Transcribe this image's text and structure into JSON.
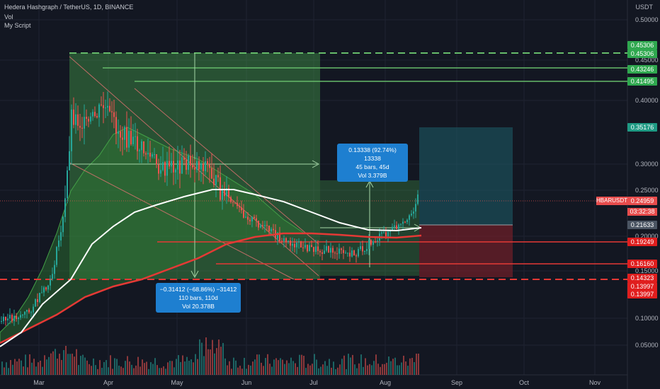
{
  "legend": {
    "symbol": "Hedera Hashgraph / TetherUS, 1D, BINANCE",
    "vol": "Vol",
    "script": "My Script"
  },
  "axis": {
    "currency": "USDT",
    "y_ticks": [
      "0.50000",
      "0.45000",
      "0.40000",
      "0.30000",
      "0.25000",
      "0.20000",
      "0.15000",
      "0.10000",
      "0.05000"
    ],
    "x_ticks": [
      "Mar",
      "Apr",
      "May",
      "Jun",
      "Jul",
      "Aug",
      "Sep",
      "Oct",
      "Nov"
    ]
  },
  "price_badges": [
    {
      "text": "0.45306",
      "style": "green"
    },
    {
      "text": "0.45306",
      "style": "green"
    },
    {
      "text": "0.43246",
      "style": "green"
    },
    {
      "text": "0.41495",
      "style": "green"
    },
    {
      "text": "0.35176",
      "style": "dkgreen"
    },
    {
      "text": "0.24959",
      "style": "cur"
    },
    {
      "text": "0.21633",
      "style": "gray"
    },
    {
      "text": "0.19249",
      "style": "red"
    },
    {
      "text": "0.16160",
      "style": "red"
    },
    {
      "text": "0.14323",
      "style": "red"
    },
    {
      "text": "0.13997",
      "style": "red"
    },
    {
      "text": "0.13997",
      "style": "red"
    }
  ],
  "ticker_label": "HBARUSDT",
  "countdown": "03:32:38",
  "measure_up": {
    "line1": "0.13338 (92.74%) 13338",
    "line2": "45 bars, 45d",
    "line3": "Vol 3.379B"
  },
  "measure_down": {
    "line1": "−0.31412 (−68.86%) −31412",
    "line2": "110 bars, 110d",
    "line3": "Vol 20.378B"
  },
  "colors": {
    "background": "#131722",
    "bull": "#26a69a",
    "bear": "#ef5350",
    "ma_white": "#ffffff",
    "ma_red": "#e53935",
    "green_zone": "#4caf50",
    "measure_blue": "#1e7fd0"
  }
}
